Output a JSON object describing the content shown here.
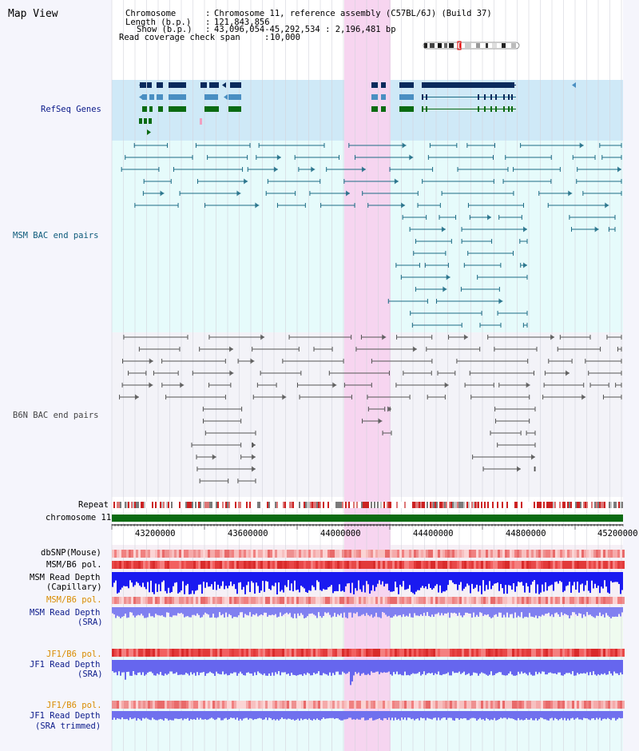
{
  "page": {
    "title": "Map View"
  },
  "info": {
    "chromosome_key": "Chromosome",
    "chromosome_val": "Chromosome 11, reference assembly (C57BL/6J) (Build 37)",
    "length_key": "Length (b.p.)",
    "length_val": "121,843,856",
    "show_key": "Show (b.p.)",
    "show_val": "43,096,054-45,292,534 : 2,196,481 bp",
    "coverage_key": "Read coverage check span",
    "coverage_val": "10,000"
  },
  "tracks": {
    "refseq": "RefSeq Genes",
    "msm_bac": "MSM BAC end pairs",
    "b6n_bac": "B6N BAC end pairs",
    "repeat": "Repeat",
    "chromosome": "chromosome 11",
    "dbsnp": "dbSNP(Mouse)",
    "msm_b6_pol_1": "MSM/B6 pol.",
    "msm_depth_cap_1": "MSM Read Depth",
    "msm_depth_cap_2": "(Capillary)",
    "msm_b6_pol_2": "MSM/B6 pol.",
    "msm_depth_sra_1": "MSM Read Depth",
    "msm_depth_sra_2": "(SRA)",
    "jf1_b6_pol_1": "JF1/B6 pol.",
    "jf1_depth_sra_1": "JF1 Read Depth",
    "jf1_depth_sra_2": "(SRA)",
    "jf1_b6_pol_2": "JF1/B6 pol.",
    "jf1_depth_trim_1": "JF1 Read Depth",
    "jf1_depth_trim_2": "(SRA trimmed)"
  },
  "axis": {
    "ticks": [
      "43200000",
      "43600000",
      "44000000",
      "44400000",
      "44800000",
      "45200000"
    ]
  },
  "colors": {
    "refseq_bg": "#cfe9f7",
    "msm_bg": "#e6fbfb",
    "b6n_bg": "#f3f3f8",
    "highlight": "#f7d3ef",
    "dark_blue": "#0a2a5c",
    "mid_blue": "#4a8fc2",
    "green": "#0b6b12",
    "teal": "#1c6b85",
    "gray": "#555555",
    "label_navy": "#0b1a8a",
    "label_teal": "#0d5a7a",
    "label_orange": "#d98c00"
  }
}
